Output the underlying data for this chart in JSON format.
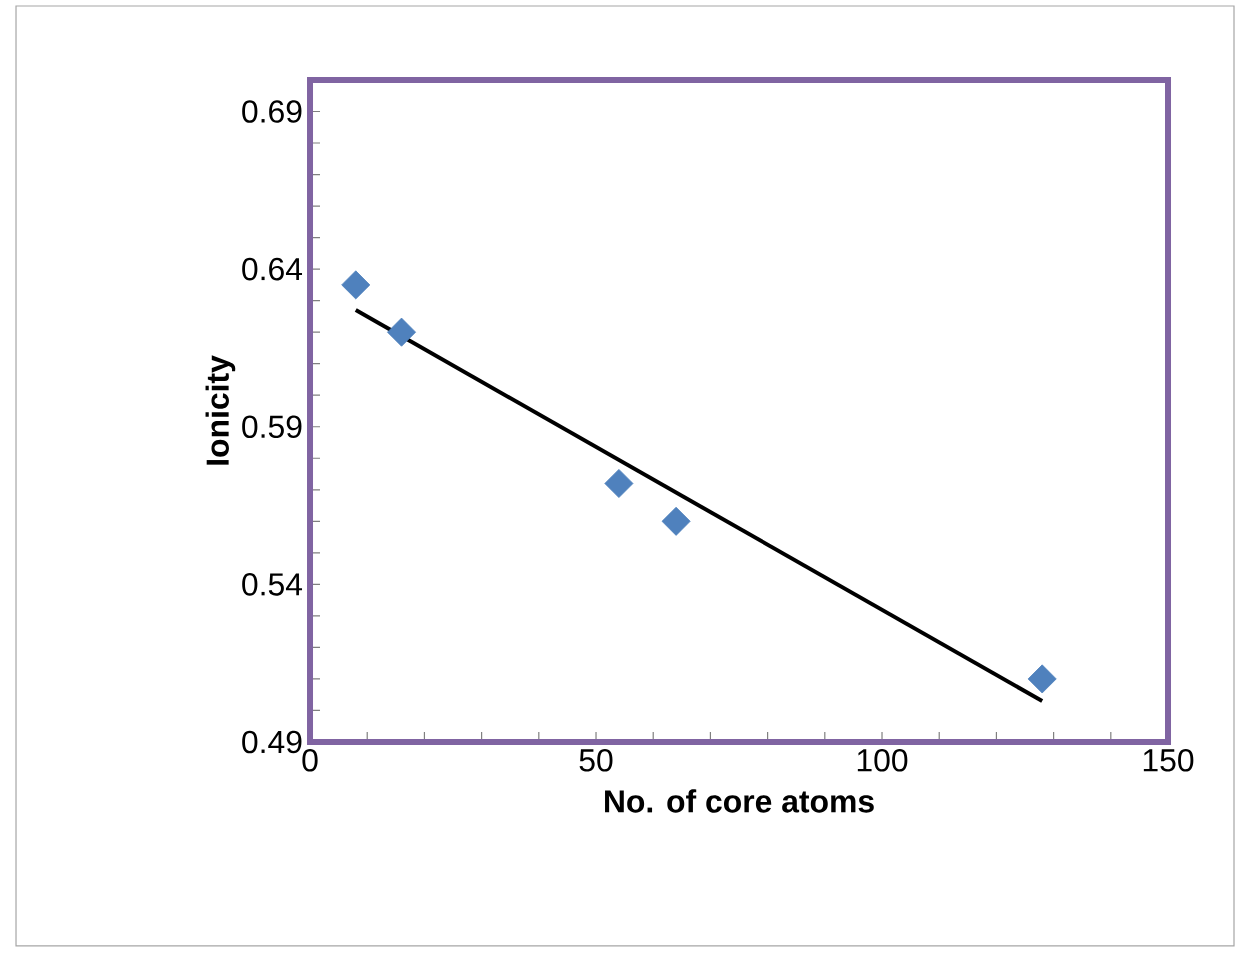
{
  "chart_data": {
    "type": "scatter",
    "xlabel": "No. of core atoms",
    "ylabel": "Ionicity",
    "xlim": [
      0,
      150
    ],
    "xticks": [
      0,
      50,
      100,
      150
    ],
    "ylim": [
      0.49,
      0.7
    ],
    "yticks": [
      0.49,
      0.54,
      0.59,
      0.64,
      0.69
    ],
    "grid": false,
    "legend": false,
    "series": [
      {
        "color": "#4f81bd",
        "marker": "diamond",
        "x": [
          8,
          16,
          54,
          64,
          128
        ],
        "values": [
          0.635,
          0.62,
          0.572,
          0.56,
          0.51
        ]
      },
      {
        "type": "line",
        "color": "#000000",
        "marker": "none",
        "line_style": "solid",
        "x": [
          8,
          128
        ],
        "values": [
          0.627,
          0.503
        ]
      }
    ]
  }
}
